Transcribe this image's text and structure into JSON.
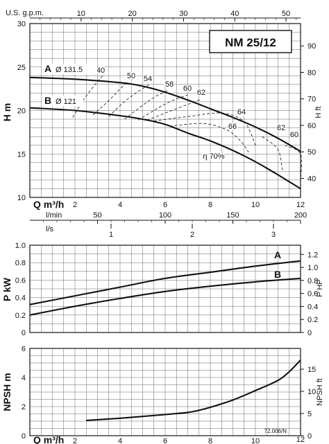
{
  "chart_data": [
    {
      "type": "line",
      "panel": "head",
      "title": "NM 25/12",
      "xlabel": "Q m³/h",
      "ylabel": "H m",
      "ylabel_right": "H ft",
      "xlim": [
        0,
        12
      ],
      "ylim": [
        10,
        30
      ],
      "xticks": [
        "2",
        "4",
        "6",
        "8",
        "10",
        "12"
      ],
      "yticks": [
        "10",
        "15",
        "20",
        "25",
        "30"
      ],
      "ft_ticks": [
        "40",
        "50",
        "60",
        "70",
        "80",
        "90"
      ],
      "gpm_label": "U.S. g.p.m.",
      "gpm_ticks": [
        "10",
        "20",
        "30",
        "40",
        "50"
      ],
      "lmin_label": "l/min",
      "lmin_ticks": [
        "50",
        "100",
        "150",
        "200"
      ],
      "ls_label": "l/s",
      "ls_ticks": [
        "1",
        "2",
        "3"
      ],
      "series": [
        {
          "name": "A",
          "diameter_label": "Ø 131.5",
          "x": [
            0,
            2,
            4,
            5,
            6,
            7,
            8,
            9,
            10,
            11,
            12
          ],
          "y": [
            23.8,
            23.6,
            23.2,
            22.8,
            22.1,
            21.2,
            20.2,
            19.2,
            18.1,
            16.8,
            15.3
          ]
        },
        {
          "name": "B",
          "diameter_label": "Ø 121",
          "x": [
            0,
            2,
            4,
            5,
            6,
            7,
            8,
            9,
            10,
            11,
            12
          ],
          "y": [
            20.3,
            20.0,
            19.4,
            19.0,
            18.4,
            17.4,
            16.5,
            15.4,
            14.1,
            12.6,
            11.0
          ]
        }
      ],
      "efficiency_label": "η 70%",
      "efficiency_curves": [
        {
          "label": "40",
          "x": [
            1.9,
            2.4,
            2.9,
            3.3
          ],
          "y": [
            19.2,
            21.3,
            23.0,
            24.2
          ]
        },
        {
          "label": "50",
          "x": [
            2.8,
            3.4,
            3.9,
            4.3
          ],
          "y": [
            19.5,
            20.9,
            22.2,
            23.3
          ]
        },
        {
          "label": "54",
          "x": [
            3.5,
            4.1,
            4.7,
            5.3
          ],
          "y": [
            19.3,
            20.8,
            22.0,
            23.0
          ]
        },
        {
          "label": "58",
          "x": [
            4.2,
            4.9,
            5.5,
            6.1
          ],
          "y": [
            19.0,
            20.4,
            21.5,
            22.3
          ]
        },
        {
          "label": "60",
          "x": [
            4.8,
            5.5,
            6.2,
            7.0
          ],
          "y": [
            18.9,
            20.0,
            21.0,
            21.8
          ]
        },
        {
          "label": "62",
          "x": [
            5.2,
            6.4,
            7.2,
            7.6
          ],
          "y": [
            18.9,
            20.1,
            20.9,
            21.3
          ]
        },
        {
          "label": "64",
          "x": [
            5.5,
            7.0,
            8.5,
            9.5,
            10.0
          ],
          "y": [
            18.8,
            19.3,
            19.7,
            18.7,
            16.0
          ]
        },
        {
          "label": "66",
          "x": [
            6.2,
            7.7,
            8.7,
            9.3,
            9.7
          ],
          "y": [
            18.2,
            18.5,
            17.8,
            16.6,
            15.2
          ]
        },
        {
          "label": "62",
          "x": [
            10.3,
            11.0,
            11.2
          ],
          "y": [
            17.0,
            15.5,
            13.0
          ]
        },
        {
          "label": "60",
          "x": [
            11.3,
            12.0,
            12.0
          ],
          "y": [
            16.0,
            15.0,
            12.0
          ]
        }
      ]
    },
    {
      "type": "line",
      "panel": "power",
      "xlabel": "",
      "ylabel": "P kW",
      "ylabel_right": "P HP",
      "xlim": [
        0,
        12
      ],
      "ylim": [
        0,
        1.0
      ],
      "yticks": [
        "0",
        "0.2",
        "0.4",
        "0.6",
        "0.8",
        "1.0"
      ],
      "hp_ticks": [
        "0",
        "0.2",
        "0.4",
        "0.6",
        "0.8",
        "1.0",
        "1.2"
      ],
      "series": [
        {
          "name": "A",
          "x": [
            0,
            2,
            4,
            6,
            8,
            10,
            12
          ],
          "y": [
            0.32,
            0.42,
            0.52,
            0.62,
            0.69,
            0.76,
            0.82
          ]
        },
        {
          "name": "B",
          "x": [
            0,
            2,
            4,
            6,
            8,
            10,
            12
          ],
          "y": [
            0.2,
            0.3,
            0.39,
            0.47,
            0.53,
            0.58,
            0.62
          ]
        }
      ]
    },
    {
      "type": "line",
      "panel": "npsh",
      "xlabel": "Q m³/h",
      "ylabel": "NPSH m",
      "ylabel_right": "NPSH ft",
      "xlim": [
        0,
        12
      ],
      "ylim": [
        0,
        6
      ],
      "xticks": [
        "2",
        "4",
        "6",
        "8",
        "10",
        "12"
      ],
      "yticks": [
        "0",
        "2",
        "4",
        "6"
      ],
      "ft_ticks": [
        "0",
        "5",
        "10",
        "15"
      ],
      "figure_code": "72.006/N",
      "series": [
        {
          "name": "NPSH",
          "x": [
            2.5,
            4,
            6,
            7,
            7.5,
            8,
            9,
            10,
            11,
            11.5,
            12
          ],
          "y": [
            1.05,
            1.2,
            1.45,
            1.6,
            1.75,
            1.95,
            2.45,
            3.1,
            3.8,
            4.4,
            5.2
          ]
        }
      ]
    }
  ]
}
